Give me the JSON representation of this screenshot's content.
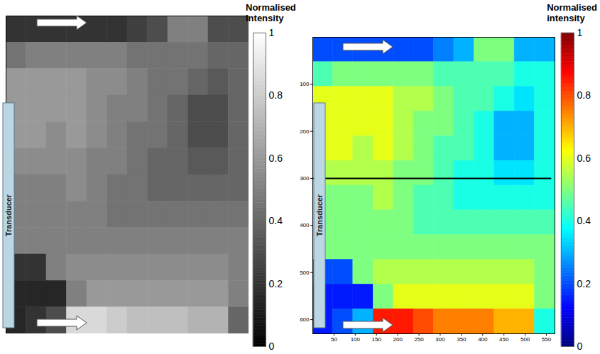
{
  "chart_data": [
    {
      "type": "heatmap",
      "color": "gray",
      "tick_labels": false,
      "label": "Transducer",
      "xlim": [
        0,
        570
      ],
      "ylim": [
        0,
        630
      ],
      "colorbar": {
        "title": "Normalised intensity",
        "range": [
          0,
          1
        ],
        "ticks": [
          0,
          0.2,
          0.4,
          0.6,
          0.8,
          1
        ]
      },
      "cells": [
        [
          0.2,
          0.2,
          0.2,
          0.2,
          0.2,
          0.2,
          0.25,
          0.3,
          0.5,
          0.5,
          0.3,
          0.3
        ],
        [
          0.45,
          0.5,
          0.5,
          0.5,
          0.5,
          0.5,
          0.45,
          0.45,
          0.45,
          0.45,
          0.4,
          0.4
        ],
        [
          0.6,
          0.6,
          0.6,
          0.6,
          0.55,
          0.55,
          0.5,
          0.45,
          0.45,
          0.4,
          0.35,
          0.4
        ],
        [
          0.6,
          0.6,
          0.6,
          0.6,
          0.55,
          0.5,
          0.5,
          0.45,
          0.4,
          0.3,
          0.3,
          0.4
        ],
        [
          0.6,
          0.6,
          0.55,
          0.6,
          0.55,
          0.5,
          0.45,
          0.45,
          0.4,
          0.3,
          0.3,
          0.4
        ],
        [
          0.55,
          0.55,
          0.55,
          0.55,
          0.5,
          0.5,
          0.45,
          0.4,
          0.4,
          0.35,
          0.35,
          0.4
        ],
        [
          0.5,
          0.5,
          0.5,
          0.55,
          0.5,
          0.45,
          0.45,
          0.4,
          0.4,
          0.4,
          0.4,
          0.4
        ],
        [
          0.5,
          0.5,
          0.5,
          0.5,
          0.5,
          0.45,
          0.45,
          0.45,
          0.45,
          0.45,
          0.45,
          0.45
        ],
        [
          0.5,
          0.5,
          0.5,
          0.5,
          0.5,
          0.5,
          0.5,
          0.5,
          0.5,
          0.5,
          0.5,
          0.5
        ],
        [
          0.2,
          0.2,
          0.5,
          0.55,
          0.55,
          0.55,
          0.55,
          0.55,
          0.55,
          0.55,
          0.55,
          0.5
        ],
        [
          0.15,
          0.15,
          0.15,
          0.5,
          0.6,
          0.6,
          0.6,
          0.6,
          0.6,
          0.6,
          0.6,
          0.5
        ],
        [
          0.15,
          0.2,
          0.3,
          0.85,
          0.85,
          0.8,
          0.75,
          0.75,
          0.75,
          0.7,
          0.7,
          0.4
        ]
      ]
    },
    {
      "type": "heatmap",
      "color": "jet",
      "label": "Transducer",
      "xlim": [
        0,
        570
      ],
      "ylim": [
        0,
        630
      ],
      "xticks": [
        50,
        100,
        150,
        200,
        250,
        300,
        350,
        400,
        450,
        500,
        550
      ],
      "yticks": [
        100,
        200,
        300,
        400,
        500,
        600
      ],
      "section_line": {
        "x": [
          0,
          560
        ],
        "y": [
          300,
          300
        ]
      },
      "colorbar": {
        "title": "Normalised intensity",
        "range": [
          0,
          1
        ],
        "ticks": [
          0,
          0.2,
          0.4,
          0.6,
          0.8,
          1
        ]
      },
      "cells": [
        [
          0.2,
          0.2,
          0.2,
          0.2,
          0.2,
          0.2,
          0.25,
          0.3,
          0.5,
          0.5,
          0.3,
          0.3
        ],
        [
          0.45,
          0.5,
          0.5,
          0.5,
          0.5,
          0.5,
          0.45,
          0.45,
          0.45,
          0.45,
          0.4,
          0.4
        ],
        [
          0.6,
          0.6,
          0.6,
          0.6,
          0.55,
          0.55,
          0.5,
          0.45,
          0.45,
          0.4,
          0.35,
          0.4
        ],
        [
          0.6,
          0.6,
          0.6,
          0.6,
          0.55,
          0.5,
          0.5,
          0.45,
          0.4,
          0.3,
          0.3,
          0.4
        ],
        [
          0.6,
          0.6,
          0.55,
          0.6,
          0.55,
          0.5,
          0.45,
          0.45,
          0.4,
          0.3,
          0.3,
          0.4
        ],
        [
          0.55,
          0.55,
          0.55,
          0.55,
          0.5,
          0.5,
          0.45,
          0.4,
          0.4,
          0.35,
          0.35,
          0.4
        ],
        [
          0.5,
          0.5,
          0.5,
          0.55,
          0.5,
          0.45,
          0.45,
          0.4,
          0.4,
          0.4,
          0.4,
          0.4
        ],
        [
          0.5,
          0.5,
          0.5,
          0.5,
          0.5,
          0.45,
          0.45,
          0.45,
          0.45,
          0.45,
          0.45,
          0.45
        ],
        [
          0.5,
          0.5,
          0.5,
          0.5,
          0.5,
          0.5,
          0.5,
          0.5,
          0.5,
          0.5,
          0.5,
          0.5
        ],
        [
          0.2,
          0.2,
          0.5,
          0.55,
          0.55,
          0.55,
          0.55,
          0.55,
          0.55,
          0.55,
          0.55,
          0.5
        ],
        [
          0.15,
          0.15,
          0.15,
          0.5,
          0.6,
          0.6,
          0.6,
          0.6,
          0.6,
          0.6,
          0.6,
          0.5
        ],
        [
          0.15,
          0.2,
          0.3,
          0.85,
          0.85,
          0.8,
          0.75,
          0.75,
          0.75,
          0.7,
          0.7,
          0.4
        ]
      ]
    }
  ]
}
